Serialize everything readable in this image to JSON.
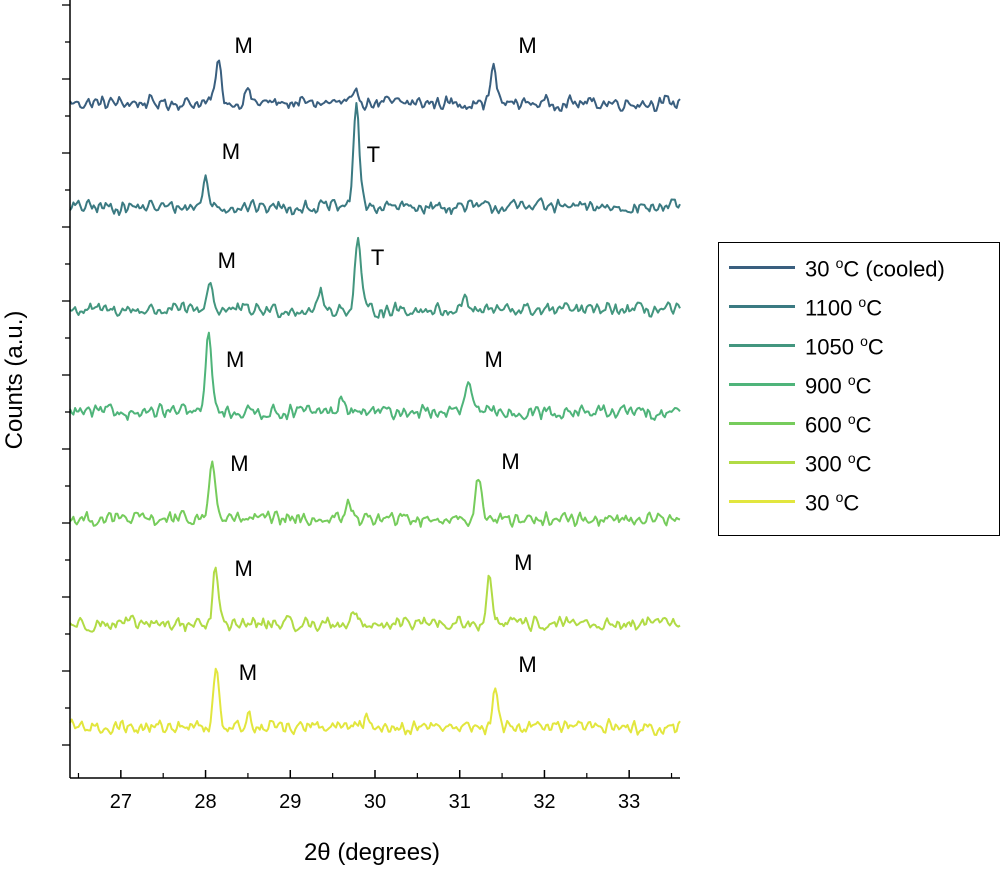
{
  "chart_data": {
    "type": "line",
    "xlabel": "2θ (degrees)",
    "ylabel": "Counts (a.u.)",
    "xlim": [
      26.4,
      33.6
    ],
    "x_ticks": [
      "27",
      "28",
      "29",
      "30",
      "31",
      "32",
      "33"
    ],
    "legend_position": "right",
    "grid": false,
    "series": [
      {
        "name": "30 °C (cooled)",
        "label_main": "30 ",
        "label_sup": "o",
        "label_rest": "C (cooled)",
        "color": "#3a5f7f",
        "peaks": [
          {
            "x": 28.15,
            "h": 1.0
          },
          {
            "x": 28.5,
            "h": 0.3
          },
          {
            "x": 29.8,
            "h": 0.2
          },
          {
            "x": 31.4,
            "h": 0.85
          }
        ],
        "annotations": [
          {
            "text": "M",
            "x": 28.45
          },
          {
            "text": "M",
            "x": 31.8
          }
        ]
      },
      {
        "name": "1100 °C",
        "label_main": "1100 ",
        "label_sup": "o",
        "label_rest": "C",
        "color": "#3b7a82",
        "peaks": [
          {
            "x": 28.0,
            "h": 0.7
          },
          {
            "x": 29.78,
            "h": 2.6
          },
          {
            "x": 31.9,
            "h": 0.2
          }
        ],
        "annotations": [
          {
            "text": "M",
            "x": 28.3
          },
          {
            "text": "T",
            "x": 29.98
          }
        ]
      },
      {
        "name": "1050 °C",
        "label_main": "1050 ",
        "label_sup": "o",
        "label_rest": "C",
        "color": "#43967f",
        "peaks": [
          {
            "x": 28.05,
            "h": 0.7
          },
          {
            "x": 29.35,
            "h": 0.4
          },
          {
            "x": 29.8,
            "h": 1.8
          },
          {
            "x": 31.05,
            "h": 0.35
          }
        ],
        "annotations": [
          {
            "text": "M",
            "x": 28.25
          },
          {
            "text": "T",
            "x": 30.03
          }
        ]
      },
      {
        "name": "900 °C",
        "label_main": "900 ",
        "label_sup": "o",
        "label_rest": "C",
        "color": "#4fb47a",
        "peaks": [
          {
            "x": 28.04,
            "h": 2.0
          },
          {
            "x": 29.6,
            "h": 0.3
          },
          {
            "x": 31.1,
            "h": 0.75
          }
        ],
        "annotations": [
          {
            "text": "M",
            "x": 28.35
          },
          {
            "text": "M",
            "x": 31.4
          }
        ]
      },
      {
        "name": "600 °C",
        "label_main": "600 ",
        "label_sup": "o",
        "label_rest": "C",
        "color": "#76cc5c",
        "peaks": [
          {
            "x": 28.08,
            "h": 1.5
          },
          {
            "x": 29.7,
            "h": 0.4
          },
          {
            "x": 31.22,
            "h": 1.1
          }
        ],
        "annotations": [
          {
            "text": "M",
            "x": 28.4
          },
          {
            "text": "M",
            "x": 31.6
          }
        ]
      },
      {
        "name": "300 °C",
        "label_main": "300 ",
        "label_sup": "o",
        "label_rest": "C",
        "color": "#b1db45",
        "peaks": [
          {
            "x": 28.12,
            "h": 1.3
          },
          {
            "x": 29.75,
            "h": 0.3
          },
          {
            "x": 31.35,
            "h": 1.1
          }
        ],
        "annotations": [
          {
            "text": "M",
            "x": 28.45
          },
          {
            "text": "M",
            "x": 31.75
          }
        ]
      },
      {
        "name": "30 °C",
        "label_main": "30 ",
        "label_sup": "o",
        "label_rest": "C",
        "color": "#e2e63e",
        "peaks": [
          {
            "x": 28.13,
            "h": 1.5
          },
          {
            "x": 28.5,
            "h": 0.3
          },
          {
            "x": 29.9,
            "h": 0.2
          },
          {
            "x": 31.42,
            "h": 0.8
          }
        ],
        "annotations": [
          {
            "text": "M",
            "x": 28.5
          },
          {
            "text": "M",
            "x": 31.8
          }
        ]
      }
    ]
  }
}
